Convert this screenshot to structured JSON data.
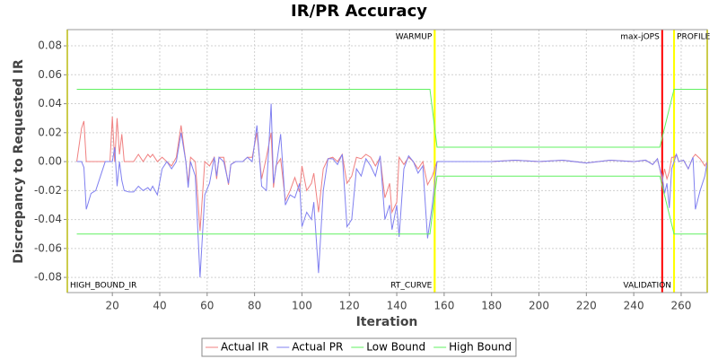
{
  "chart_data": {
    "type": "line",
    "title": "IR/PR Accuracy",
    "x_label": "Iteration",
    "y_label": "Discrepancy to Requested IR",
    "xlim": [
      1,
      271
    ],
    "ylim": [
      -0.0905,
      0.0912
    ],
    "xticks": [
      20,
      40,
      60,
      80,
      100,
      120,
      140,
      160,
      180,
      200,
      220,
      240,
      260
    ],
    "yticks": [
      -0.08,
      -0.06,
      -0.04,
      -0.02,
      {
        "value": 0,
        "label": "0.00"
      },
      0.02,
      0.04,
      0.06,
      0.08
    ],
    "grid": true,
    "legend": "bottom",
    "series": [
      {
        "name": "Actual IR",
        "color": "#f08080",
        "x": [
          5,
          7,
          8,
          9,
          11,
          13,
          15,
          17,
          19,
          20,
          21,
          22,
          23,
          24,
          25,
          27,
          29,
          31,
          33,
          35,
          36,
          37,
          39,
          41,
          43,
          45,
          47,
          49,
          51,
          52,
          53,
          55,
          57,
          59,
          61,
          63,
          64,
          65,
          67,
          69,
          70,
          72,
          75,
          77,
          79,
          81,
          83,
          85,
          87,
          88,
          89,
          91,
          93,
          95,
          97,
          99,
          100,
          102,
          104,
          105,
          107,
          109,
          111,
          113,
          115,
          117,
          119,
          121,
          123,
          125,
          127,
          129,
          131,
          133,
          135,
          137,
          138,
          140,
          141,
          143,
          145,
          147,
          149,
          151,
          153,
          155,
          157,
          160,
          170,
          180,
          190,
          200,
          210,
          220,
          230,
          240,
          245,
          248,
          250,
          251,
          252,
          253,
          254,
          255,
          256,
          257,
          258,
          259,
          261,
          263,
          265,
          266,
          268,
          270,
          271
        ],
        "values": [
          0,
          0.023,
          0.028,
          0,
          0,
          0,
          0,
          0,
          0,
          0.031,
          0,
          0.03,
          0.005,
          0.019,
          0,
          0,
          0,
          0.005,
          0,
          0.005,
          0.003,
          0.005,
          0,
          0.003,
          0,
          -0.003,
          0.003,
          0.025,
          0,
          -0.015,
          0.003,
          0,
          -0.048,
          0,
          -0.003,
          0.003,
          -0.012,
          0.003,
          0.003,
          -0.016,
          -0.002,
          0,
          0,
          0.003,
          0.003,
          0.02,
          -0.012,
          0.003,
          0.02,
          -0.018,
          -0.003,
          0.002,
          -0.027,
          -0.02,
          -0.011,
          -0.021,
          -0.003,
          -0.02,
          -0.015,
          -0.008,
          -0.035,
          -0.005,
          0.002,
          0.003,
          0,
          0.005,
          -0.015,
          -0.01,
          0.003,
          0.002,
          0.005,
          0.003,
          -0.003,
          0.003,
          -0.025,
          -0.015,
          -0.035,
          -0.028,
          0.003,
          -0.002,
          0.003,
          0,
          -0.005,
          0,
          -0.016,
          -0.01,
          0,
          0,
          0,
          0,
          0.001,
          0,
          0.001,
          -0.001,
          0.001,
          0,
          0.001,
          -0.002,
          0.002,
          -0.005,
          -0.014,
          -0.005,
          -0.012,
          -0.007,
          0.003,
          0.003,
          0.005,
          0,
          0.001,
          -0.005,
          0.003,
          0.005,
          0.002,
          -0.003,
          0
        ]
      },
      {
        "name": "Actual PR",
        "color": "#8080f0",
        "x": [
          5,
          7,
          8,
          9,
          11,
          13,
          15,
          17,
          19,
          20,
          21,
          22,
          23,
          24,
          25,
          27,
          29,
          31,
          33,
          35,
          36,
          37,
          39,
          41,
          43,
          45,
          47,
          49,
          51,
          52,
          53,
          55,
          57,
          59,
          61,
          63,
          64,
          65,
          67,
          69,
          70,
          72,
          75,
          77,
          79,
          81,
          83,
          85,
          87,
          88,
          89,
          91,
          93,
          95,
          97,
          99,
          100,
          102,
          104,
          105,
          107,
          109,
          111,
          113,
          115,
          117,
          119,
          121,
          123,
          125,
          127,
          129,
          131,
          133,
          135,
          137,
          138,
          140,
          141,
          143,
          145,
          147,
          149,
          151,
          153,
          155,
          157,
          160,
          170,
          180,
          190,
          200,
          210,
          220,
          230,
          240,
          245,
          248,
          250,
          251,
          252,
          253,
          254,
          255,
          256,
          257,
          258,
          259,
          261,
          263,
          265,
          266,
          268,
          270,
          271
        ],
        "values": [
          0,
          0,
          -0.004,
          -0.033,
          -0.022,
          -0.02,
          -0.01,
          0,
          0,
          0,
          0.01,
          -0.017,
          0,
          -0.013,
          -0.02,
          -0.021,
          -0.021,
          -0.017,
          -0.02,
          -0.018,
          -0.02,
          -0.017,
          -0.023,
          -0.005,
          0,
          -0.005,
          0,
          0.02,
          0,
          -0.018,
          0,
          -0.01,
          -0.08,
          -0.023,
          -0.015,
          0.003,
          -0.01,
          0.003,
          0,
          -0.015,
          -0.002,
          0,
          0,
          0.003,
          0,
          0.025,
          -0.017,
          -0.02,
          0.04,
          -0.015,
          -0.005,
          0.019,
          -0.03,
          -0.023,
          -0.025,
          -0.015,
          -0.045,
          -0.035,
          -0.04,
          -0.028,
          -0.077,
          -0.02,
          0.002,
          0.002,
          -0.002,
          0.005,
          -0.045,
          -0.04,
          -0.005,
          -0.01,
          0.002,
          -0.003,
          -0.01,
          0.004,
          -0.04,
          -0.03,
          -0.047,
          -0.03,
          -0.052,
          -0.005,
          0.004,
          0,
          -0.008,
          -0.003,
          -0.053,
          -0.03,
          0,
          0,
          0,
          0,
          0.001,
          0,
          0.001,
          -0.001,
          0.001,
          0,
          0.001,
          -0.002,
          0.002,
          -0.005,
          -0.01,
          -0.022,
          -0.015,
          -0.032,
          -0.005,
          0,
          0.005,
          0,
          0.001,
          -0.005,
          0.003,
          -0.033,
          -0.02,
          -0.01,
          0
        ]
      },
      {
        "name": "Low Bound",
        "color": "#60f060",
        "x": [
          5,
          154,
          157,
          251,
          257,
          271
        ],
        "values": [
          -0.05,
          -0.05,
          -0.01,
          -0.01,
          -0.05,
          -0.05
        ]
      },
      {
        "name": "High Bound",
        "color": "#60f060",
        "x": [
          5,
          154,
          157,
          251,
          257,
          271
        ],
        "values": [
          0.05,
          0.05,
          0.01,
          0.01,
          0.05,
          0.05
        ]
      }
    ],
    "markers": [
      {
        "x": 1,
        "color": "#ffff00",
        "label": "HIGH_BOUND_IR",
        "position": "bottom",
        "align": "left"
      },
      {
        "x": 156,
        "color": "#ffff00",
        "label": "WARMUP",
        "position": "top",
        "align": "right"
      },
      {
        "x": 156,
        "color": "#ffff00",
        "label": "RT_CURVE",
        "position": "bottom",
        "align": "right"
      },
      {
        "x": 252,
        "color": "#ff0000",
        "label": "max-jOPS",
        "position": "top",
        "align": "right"
      },
      {
        "x": 257,
        "color": "#ffff00",
        "label": "PROFILE",
        "position": "top",
        "align": "left"
      },
      {
        "x": 257,
        "color": "#ffff00",
        "label": "VALIDATION",
        "position": "bottom",
        "align": "right"
      },
      {
        "x": 271,
        "color": "#ffff00"
      }
    ]
  }
}
